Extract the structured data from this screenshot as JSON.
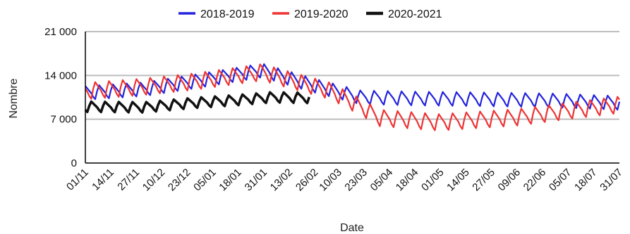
{
  "chart_data": {
    "type": "line",
    "xlabel": "Date",
    "ylabel": "Nombre",
    "ylim": [
      0,
      21000
    ],
    "y_ticks": [
      0,
      7000,
      14000,
      21000
    ],
    "y_tick_labels": [
      "0",
      "7 000",
      "14 000",
      "21 000"
    ],
    "x_tick_labels": [
      "01/11",
      "14/11",
      "27/11",
      "10/12",
      "23/12",
      "05/01",
      "18/01",
      "31/01",
      "13/02",
      "26/02",
      "10/03",
      "23/03",
      "05/04",
      "18/04",
      "01/05",
      "14/05",
      "27/05",
      "09/06",
      "22/06",
      "05/07",
      "18/07",
      "31/07"
    ],
    "x_range": [
      "01/11",
      "31/07"
    ],
    "grid": "horizontal",
    "legend_position": "top",
    "series": [
      {
        "name": "2018-2019",
        "color": "#2222dd",
        "start": "01/11",
        "end": "31/07",
        "base": [
          [
            0,
            11200
          ],
          [
            30,
            11800
          ],
          [
            55,
            13000
          ],
          [
            90,
            14800
          ],
          [
            115,
            12500
          ],
          [
            140,
            10500
          ],
          [
            170,
            10300
          ],
          [
            200,
            10200
          ],
          [
            240,
            10000
          ],
          [
            272,
            9600
          ]
        ],
        "weekly_amplitude": 2000
      },
      {
        "name": "2019-2020",
        "color": "#ee3333",
        "start": "01/11",
        "end": "31/07",
        "base": [
          [
            0,
            11500
          ],
          [
            30,
            12200
          ],
          [
            55,
            13000
          ],
          [
            90,
            14500
          ],
          [
            105,
            13200
          ],
          [
            125,
            11500
          ],
          [
            140,
            9000
          ],
          [
            150,
            7200
          ],
          [
            180,
            6500
          ],
          [
            195,
            6800
          ],
          [
            220,
            7300
          ],
          [
            245,
            8300
          ],
          [
            272,
            9300
          ]
        ],
        "weekly_amplitude": 2400
      },
      {
        "name": "2020-2021",
        "color": "#111111",
        "start": "01/11",
        "end": "23/02",
        "base": [
          [
            0,
            9000
          ],
          [
            30,
            8900
          ],
          [
            55,
            9600
          ],
          [
            75,
            10000
          ],
          [
            95,
            10500
          ],
          [
            114,
            10400
          ]
        ],
        "weekly_amplitude": 1500
      }
    ]
  }
}
